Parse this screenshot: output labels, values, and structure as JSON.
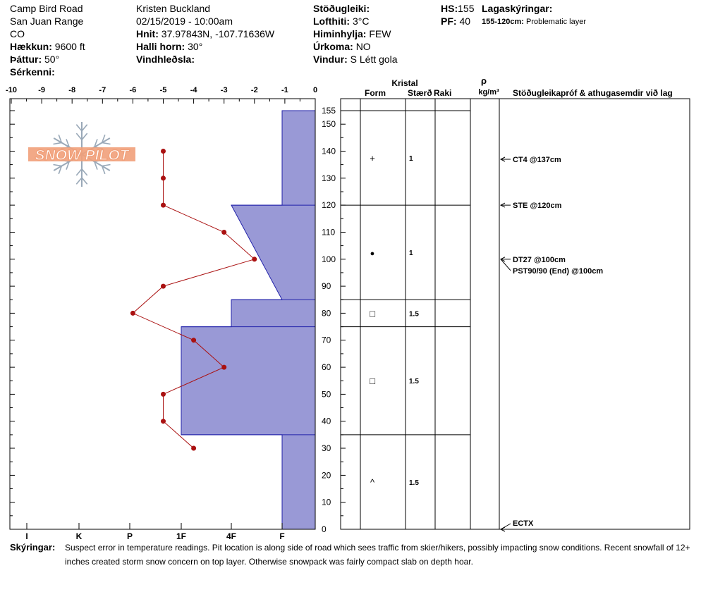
{
  "header": {
    "location": "Camp Bird Road",
    "range": "San Juan Range",
    "state": "CO",
    "elevation_label": "Hækkun:",
    "elevation_value": "9600 ft",
    "aspect_label": "Þáttur:",
    "aspect_value": "50°",
    "features_label": "Sérkenni:",
    "observer": "Kristen Buckland",
    "datetime": "02/15/2019 - 10:00am",
    "coords_label": "Hnit:",
    "coords_value": "37.97843N, -107.71636W",
    "slope_label": "Halli horn:",
    "slope_value": "30°",
    "wind_loading_label": "Vindhleðsla:",
    "stability_label": "Stöðugleiki:",
    "airtemp_label": "Lofthiti:",
    "airtemp_value": "3°C",
    "sky_label": "Himinhylja:",
    "sky_value": "FEW",
    "precip_label": "Úrkoma:",
    "precip_value": "NO",
    "wind_label": "Vindur:",
    "wind_value": "S Létt gola",
    "hs_label": "HS:",
    "hs_value": "155",
    "pf_label": "PF:",
    "pf_value": "40",
    "layer_notes_label": "Lagaskýringar:",
    "layer_note_range": "155-120cm:",
    "layer_note_text": "Problematic layer"
  },
  "columns": {
    "crystal": "Kristal",
    "form": "Form",
    "size": "Stærð",
    "moisture": "Raki",
    "rho": "ρ",
    "density_unit": "kg/m³",
    "tests": "Stöðugleikapróf & athugasemdir við lag"
  },
  "comments_label": "Skýringar:",
  "comments_text": "Suspect error in temperature readings. Pit location is along side of road which sees traffic from skier/hikers, possibly impacting snow conditions. Recent snowfall of 12+ inches created storm snow concern on top layer. Otherwise snowpack was fairly compact slab on depth hoar.",
  "logo_text": "SNOW PILOT",
  "colors": {
    "hardness_fill": "#9999d6",
    "hardness_stroke": "#2222aa",
    "temp_line": "#aa1111",
    "logo": "#f1a07a",
    "flake": "#9aa9b8"
  },
  "chart_data": {
    "type": "line",
    "temp_axis": {
      "ticks": [
        "-10",
        "-9",
        "-8",
        "-7",
        "-6",
        "-5",
        "-4",
        "-3",
        "-2",
        "-1",
        "0"
      ],
      "range": [
        -10,
        0
      ]
    },
    "hardness_axis": {
      "ticks": [
        "I",
        "K",
        "P",
        "1F",
        "4F",
        "F"
      ]
    },
    "depth_axis": {
      "range": [
        0,
        155
      ],
      "ticks": [
        "0",
        "10",
        "20",
        "30",
        "40",
        "50",
        "60",
        "70",
        "80",
        "90",
        "100",
        "110",
        "120",
        "130",
        "140",
        "150",
        "155"
      ]
    },
    "temperature_profile": [
      {
        "depth": 140,
        "temp": -5
      },
      {
        "depth": 130,
        "temp": -5
      },
      {
        "depth": 120,
        "temp": -5
      },
      {
        "depth": 110,
        "temp": -3
      },
      {
        "depth": 100,
        "temp": -2
      },
      {
        "depth": 90,
        "temp": -5
      },
      {
        "depth": 80,
        "temp": -6
      },
      {
        "depth": 70,
        "temp": -4
      },
      {
        "depth": 60,
        "temp": -3
      },
      {
        "depth": 50,
        "temp": -5
      },
      {
        "depth": 40,
        "temp": -5
      },
      {
        "depth": 30,
        "temp": -4
      }
    ],
    "layers": [
      {
        "top": 155,
        "bottom": 120,
        "hardness_top": "F",
        "hardness_bottom": "F",
        "form": "+",
        "size": "1"
      },
      {
        "top": 120,
        "bottom": 85,
        "hardness_top": "4F+",
        "hardness_bottom": "F",
        "form": "●",
        "size": "1"
      },
      {
        "top": 85,
        "bottom": 75,
        "hardness_top": "4F+",
        "hardness_bottom": "4F+",
        "form": "□",
        "size": "1.5"
      },
      {
        "top": 75,
        "bottom": 35,
        "hardness_top": "1F",
        "hardness_bottom": "1F",
        "form": "□",
        "size": "1.5"
      },
      {
        "top": 35,
        "bottom": 0,
        "hardness_top": "F",
        "hardness_bottom": "F",
        "form": "^",
        "size": "1.5"
      }
    ],
    "tests": [
      {
        "depth": 137,
        "label": "CT4 @137cm"
      },
      {
        "depth": 120,
        "label": "STE @120cm"
      },
      {
        "depth": 100,
        "label": "DT27 @100cm"
      },
      {
        "depth": 100,
        "label": "PST90/90 (End) @100cm"
      },
      {
        "depth": 0,
        "label": "ECTX"
      }
    ]
  }
}
